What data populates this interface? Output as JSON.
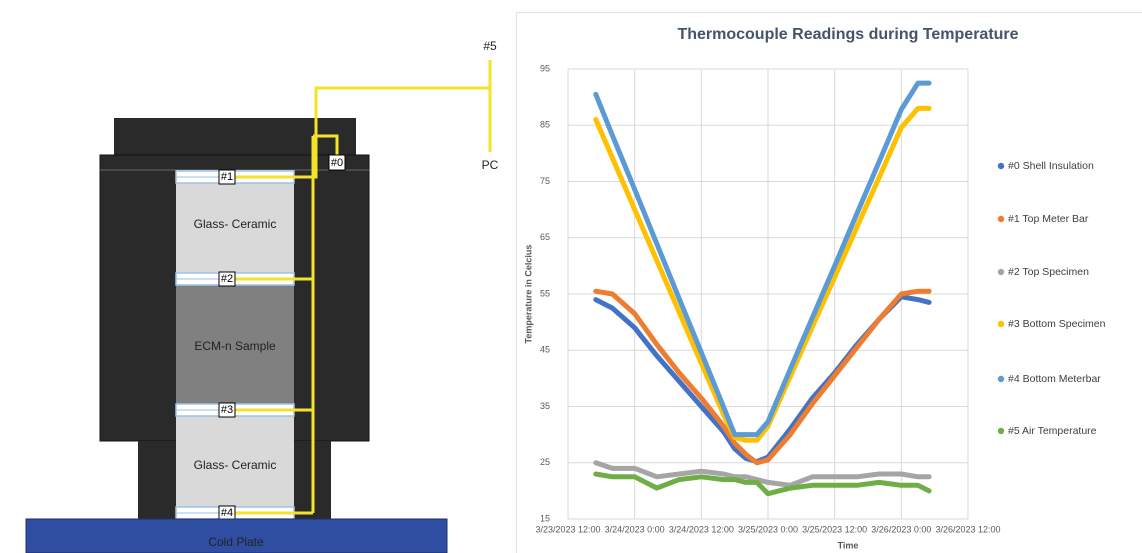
{
  "diagram": {
    "layers": [
      "Glass- Ceramic",
      "ECM-n Sample",
      "Glass- Ceramic"
    ],
    "cold_plate": "Cold Plate",
    "thermocouples": [
      "#0",
      "#1",
      "#2",
      "#3",
      "#4",
      "#5"
    ],
    "pc": "PC"
  },
  "chart_data": {
    "type": "line",
    "title": "Thermocouple Readings during Temperature",
    "x_label": "Time",
    "y_label": "Temperature in Celcius",
    "x": [
      "3/23/2023 17:00",
      "3/23/2023 20:00",
      "3/24/2023 0:00",
      "3/24/2023 4:00",
      "3/24/2023 8:00",
      "3/24/2023 12:00",
      "3/24/2023 16:00",
      "3/24/2023 18:00",
      "3/24/2023 20:00",
      "3/24/2023 22:00",
      "3/25/2023 0:00",
      "3/25/2023 4:00",
      "3/25/2023 8:00",
      "3/25/2023 12:00",
      "3/25/2023 16:00",
      "3/25/2023 20:00",
      "3/26/2023 0:00",
      "3/26/2023 3:00",
      "3/26/2023 5:00"
    ],
    "series": [
      {
        "name": "#0 Shell Insulation",
        "color": "#4472c4",
        "values": [
          54,
          52.5,
          49,
          44,
          39.5,
          35,
          30.5,
          27.5,
          25.8,
          25.2,
          26,
          31,
          36.5,
          41,
          46,
          50.5,
          54.5,
          54,
          53.5
        ]
      },
      {
        "name": "#1 Top Meter Bar",
        "color": "#ed7d31",
        "values": [
          55.5,
          55,
          51.5,
          46,
          41,
          36.5,
          31.5,
          28.5,
          26.5,
          25,
          25.5,
          30,
          35.5,
          40.5,
          45.5,
          50.5,
          55,
          55.5,
          55.5
        ]
      },
      {
        "name": "#2 Top Specimen",
        "color": "#a5a5a5",
        "values": [
          25,
          24,
          24,
          22.5,
          23,
          23.5,
          23,
          22.5,
          22.5,
          22,
          21.5,
          21,
          22.5,
          22.5,
          22.5,
          23,
          23,
          22.5,
          22.5
        ]
      },
      {
        "name": "#3 Bottom Specimen",
        "color": "#ffc000",
        "values": [
          86,
          79.2,
          70,
          60.9,
          51.8,
          42.7,
          33.6,
          29.5,
          29,
          29,
          31.5,
          40.3,
          49.2,
          58,
          66.9,
          75.7,
          84.6,
          88,
          88
        ]
      },
      {
        "name": "#4 Bottom Meterbar",
        "color": "#5b9bd5",
        "values": [
          90.5,
          83.2,
          73.6,
          63.9,
          54.2,
          44.6,
          34.9,
          30,
          30,
          30,
          32.3,
          41.6,
          50.8,
          60,
          69.3,
          78.5,
          87.8,
          92.5,
          92.5
        ]
      },
      {
        "name": "#5 Air Temperature",
        "color": "#70ad47",
        "values": [
          23,
          22.5,
          22.5,
          20.5,
          22,
          22.5,
          22,
          22,
          21.5,
          21.5,
          19.5,
          20.5,
          21,
          21,
          21,
          21.5,
          21,
          21,
          20
        ]
      }
    ],
    "xlim": [
      "3/23/2023 12:00",
      "3/26/2023 12:00"
    ],
    "xticks": [
      "3/23/2023 12:00",
      "3/24/2023 0:00",
      "3/24/2023 12:00",
      "3/25/2023 0:00",
      "3/25/2023 12:00",
      "3/26/2023 0:00",
      "3/26/2023 12:00"
    ],
    "ylim": [
      15,
      95
    ],
    "yticks": [
      15,
      25,
      35,
      45,
      55,
      65,
      75,
      85,
      95
    ],
    "grid": true,
    "legend": "right"
  }
}
